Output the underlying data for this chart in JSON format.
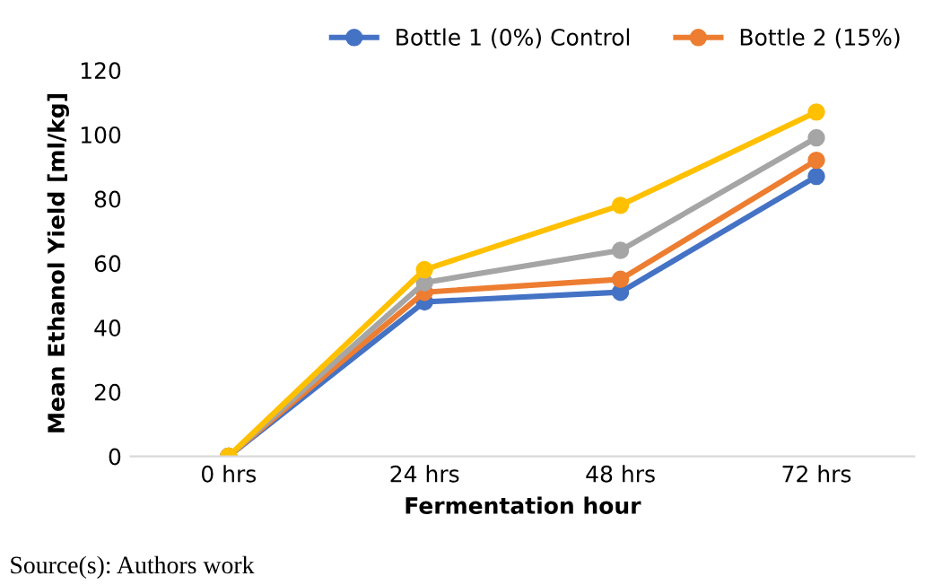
{
  "chart_data": {
    "type": "line",
    "xlabel": "Fermentation hour",
    "ylabel": "Mean Ethanol Yield [ml/kg]",
    "categories": [
      "0 hrs",
      "24 hrs",
      "48 hrs",
      "72 hrs"
    ],
    "series": [
      {
        "name": "Bottle 1 (0%) Control",
        "color": "#4472c4",
        "values": [
          0,
          48,
          51,
          87
        ]
      },
      {
        "name": "Bottle 2 (15%)",
        "color": "#ed7d31",
        "values": [
          0,
          51,
          55,
          92
        ]
      },
      {
        "color": "#a5a5a5",
        "values": [
          0,
          54,
          64,
          99
        ]
      },
      {
        "color": "#ffc000",
        "values": [
          0,
          58,
          78,
          107
        ]
      }
    ],
    "ylim": [
      0,
      120
    ],
    "yticks": [
      0,
      20,
      40,
      60,
      80,
      100,
      120
    ],
    "grid": false,
    "legend": "top",
    "marker": "circle",
    "line_style": "solid",
    "annotations": [
      "Source(s): Authors work"
    ]
  }
}
